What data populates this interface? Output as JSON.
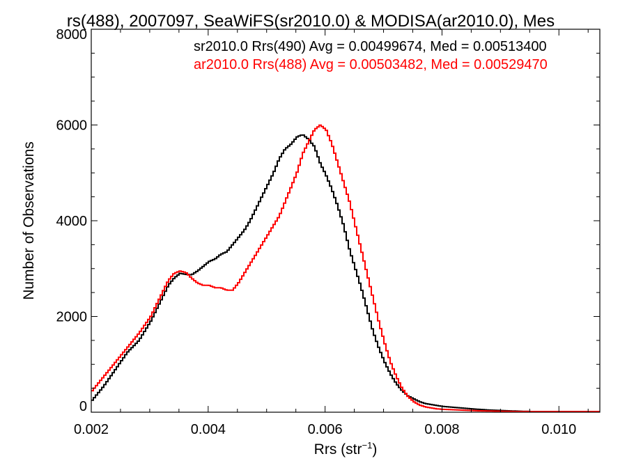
{
  "chart_data": {
    "type": "line",
    "title": "rs(488), 2007097, SeaWiFS(sr2010.0) & MODISA(ar2010.0), Mes",
    "xlabel_main": "Rrs (str",
    "xlabel_sup": "−1",
    "xlabel_close": ")",
    "ylabel": "Number of Observations",
    "xlim": [
      0.002,
      0.0107
    ],
    "ylim": [
      0,
      8000
    ],
    "x_ticks": [
      0.002,
      0.004,
      0.006,
      0.008,
      0.01
    ],
    "x_tick_labels": [
      "0.002",
      "0.004",
      "0.006",
      "0.008",
      "0.010"
    ],
    "y_ticks": [
      0,
      2000,
      4000,
      6000,
      8000
    ],
    "y_tick_labels": [
      "0",
      "2000",
      "4000",
      "6000",
      "8000"
    ],
    "step": true,
    "series": [
      {
        "name": "sr2010.0 Rrs(490) Avg = 0.00499674, Med = 0.00513400",
        "color": "#000000",
        "x": [
          0.002,
          0.0022,
          0.0024,
          0.0026,
          0.0028,
          0.003,
          0.0031,
          0.0032,
          0.0033,
          0.0034,
          0.0035,
          0.0036,
          0.0037,
          0.0038,
          0.0039,
          0.004,
          0.0041,
          0.0042,
          0.0043,
          0.0044,
          0.0045,
          0.0046,
          0.0047,
          0.0048,
          0.0049,
          0.005,
          0.0051,
          0.0052,
          0.0053,
          0.0054,
          0.0055,
          0.0056,
          0.0057,
          0.0058,
          0.0059,
          0.006,
          0.0061,
          0.0062,
          0.0063,
          0.0064,
          0.0065,
          0.0066,
          0.0067,
          0.0068,
          0.0069,
          0.007,
          0.0071,
          0.0072,
          0.0073,
          0.0074,
          0.0075,
          0.0076,
          0.0077,
          0.0078,
          0.0079,
          0.008,
          0.0082,
          0.0084,
          0.0086,
          0.0088,
          0.009,
          0.0092,
          0.0095,
          0.01,
          0.0107
        ],
        "values": [
          250,
          550,
          900,
          1250,
          1500,
          1900,
          2150,
          2400,
          2650,
          2800,
          2900,
          2880,
          2870,
          2950,
          3050,
          3150,
          3200,
          3300,
          3350,
          3500,
          3650,
          3800,
          4000,
          4250,
          4500,
          4750,
          5000,
          5300,
          5500,
          5600,
          5750,
          5800,
          5700,
          5550,
          5200,
          4950,
          4650,
          4300,
          3900,
          3400,
          3000,
          2600,
          2150,
          1700,
          1350,
          1050,
          800,
          600,
          450,
          340,
          280,
          220,
          180,
          160,
          140,
          120,
          100,
          80,
          60,
          45,
          35,
          25,
          15,
          10,
          5
        ]
      },
      {
        "name": "ar2010.0 Rrs(488) Avg = 0.00503482, Med = 0.00529470",
        "color": "#ff0000",
        "x": [
          0.002,
          0.0022,
          0.0024,
          0.0026,
          0.0028,
          0.003,
          0.0031,
          0.0032,
          0.0033,
          0.0034,
          0.0035,
          0.0036,
          0.0037,
          0.0038,
          0.0039,
          0.004,
          0.0041,
          0.0042,
          0.0043,
          0.0044,
          0.0045,
          0.0046,
          0.0047,
          0.0048,
          0.0049,
          0.005,
          0.0051,
          0.0052,
          0.0053,
          0.0054,
          0.0055,
          0.0056,
          0.0057,
          0.0058,
          0.0059,
          0.006,
          0.0061,
          0.0062,
          0.0063,
          0.0064,
          0.0065,
          0.0066,
          0.0067,
          0.0068,
          0.0069,
          0.007,
          0.0071,
          0.0072,
          0.0073,
          0.0074,
          0.0075,
          0.0076,
          0.0077,
          0.0078,
          0.0079,
          0.008,
          0.0082,
          0.0084,
          0.0086,
          0.0088,
          0.009,
          0.0092,
          0.0095,
          0.01,
          0.0107
        ],
        "values": [
          450,
          750,
          1050,
          1350,
          1650,
          2000,
          2250,
          2500,
          2750,
          2900,
          2950,
          2920,
          2800,
          2700,
          2650,
          2650,
          2600,
          2600,
          2550,
          2550,
          2700,
          2900,
          3100,
          3300,
          3500,
          3700,
          3900,
          4100,
          4400,
          4700,
          5000,
          5400,
          5650,
          5900,
          6000,
          5900,
          5600,
          5200,
          4800,
          4400,
          3900,
          3400,
          2900,
          2400,
          1900,
          1450,
          1050,
          750,
          500,
          330,
          220,
          150,
          110,
          90,
          70,
          60,
          50,
          40,
          30,
          25,
          20,
          15,
          10,
          8,
          5
        ]
      }
    ]
  }
}
